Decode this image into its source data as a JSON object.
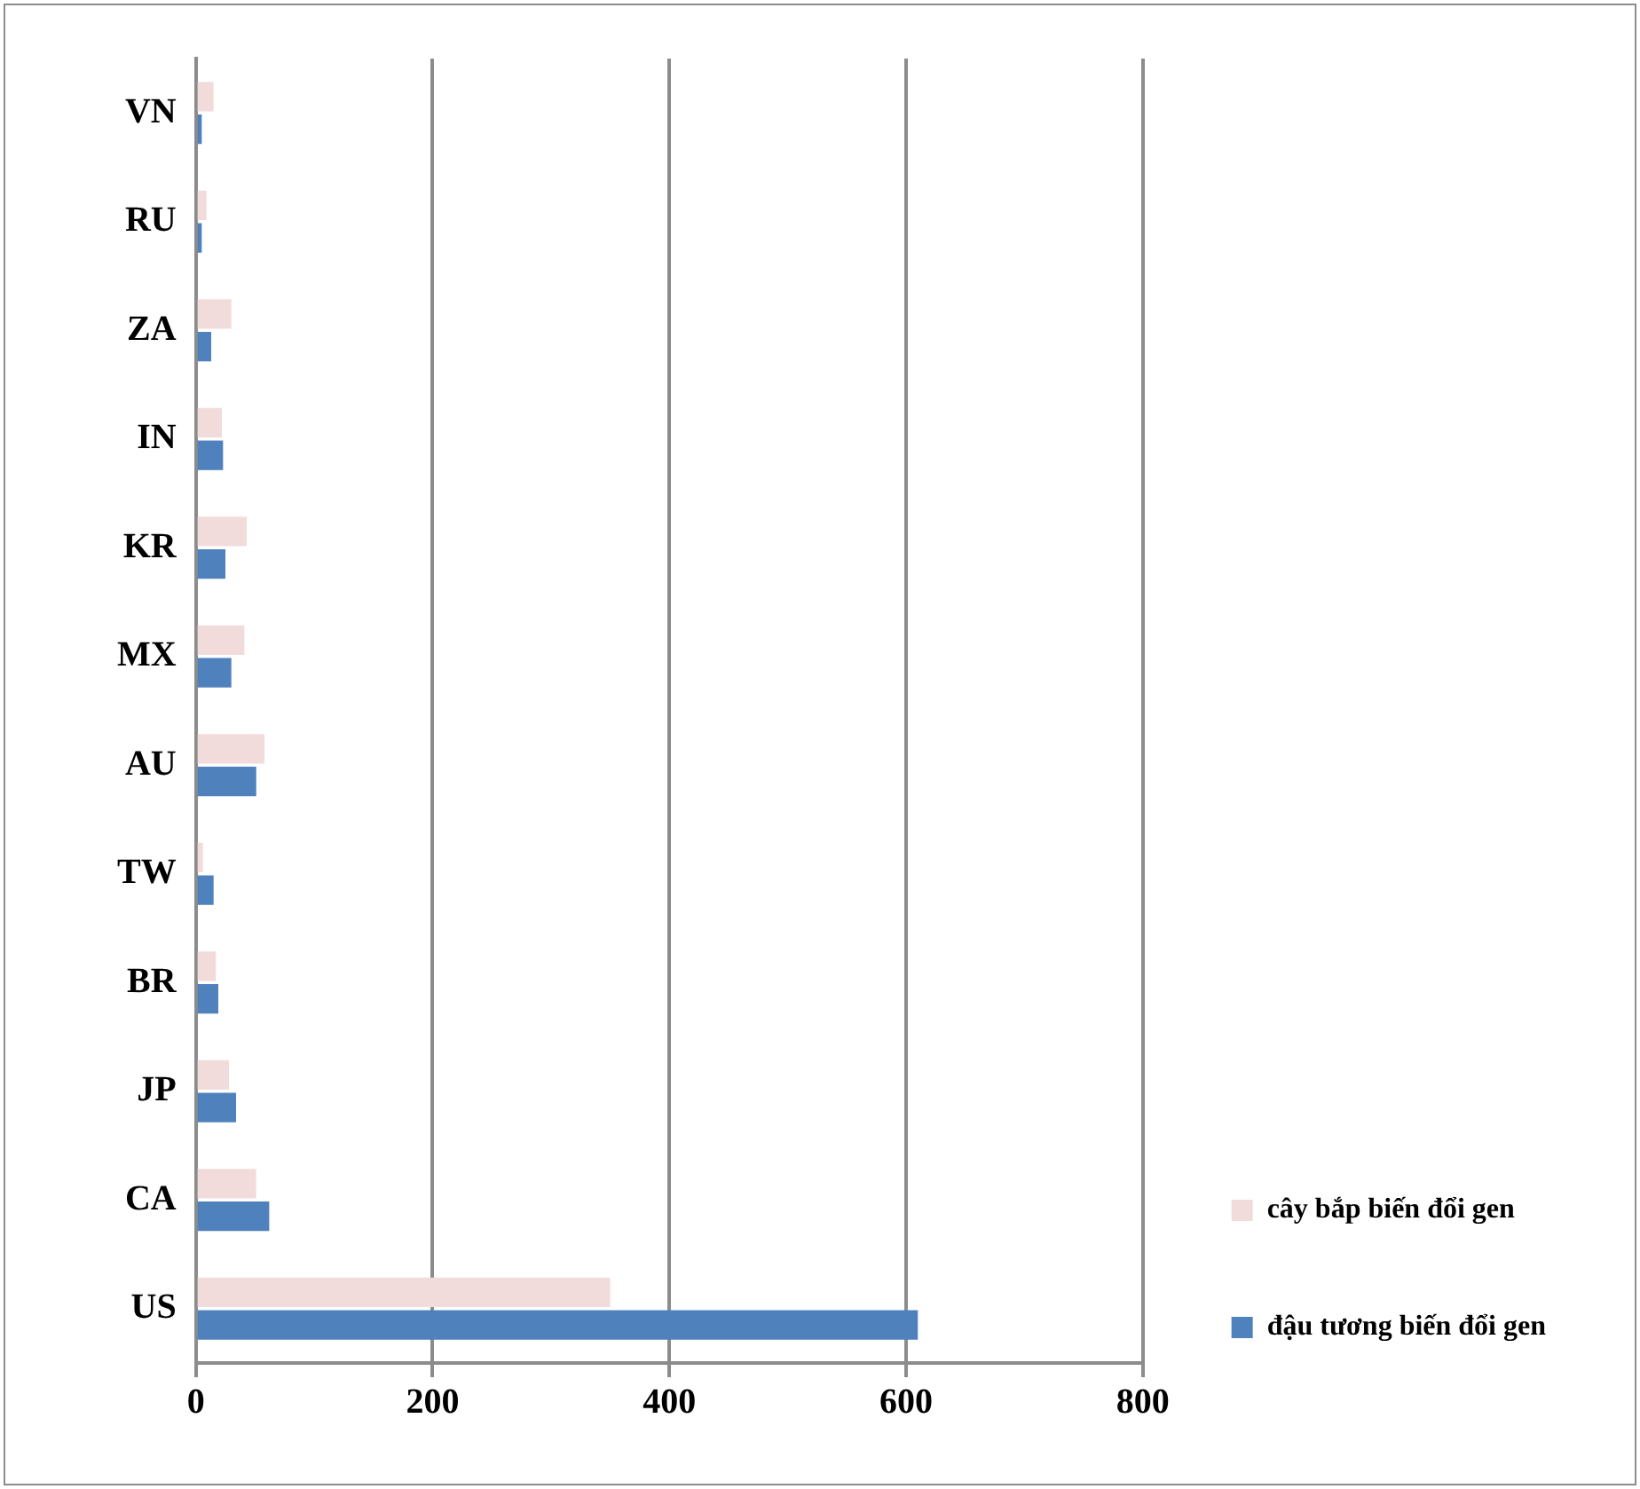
{
  "chart_data": {
    "type": "bar",
    "orientation": "horizontal",
    "categories": [
      "VN",
      "RU",
      "ZA",
      "IN",
      "KR",
      "MX",
      "AU",
      "TW",
      "BR",
      "JP",
      "CA",
      "US"
    ],
    "series": [
      {
        "name": "cây bắp biến đổi gen",
        "color": "#f2dcdb",
        "values": [
          15,
          9,
          30,
          22,
          43,
          41,
          58,
          6,
          17,
          28,
          51,
          350
        ]
      },
      {
        "name": "đậu tương biến đổi gen",
        "color": "#4f81bd",
        "values": [
          5,
          5,
          13,
          23,
          25,
          30,
          51,
          15,
          19,
          34,
          62,
          610
        ]
      }
    ],
    "xlim": [
      0,
      800
    ],
    "xticks": [
      0,
      200,
      400,
      600,
      800
    ],
    "grid": "x",
    "legend": "bottom right"
  }
}
